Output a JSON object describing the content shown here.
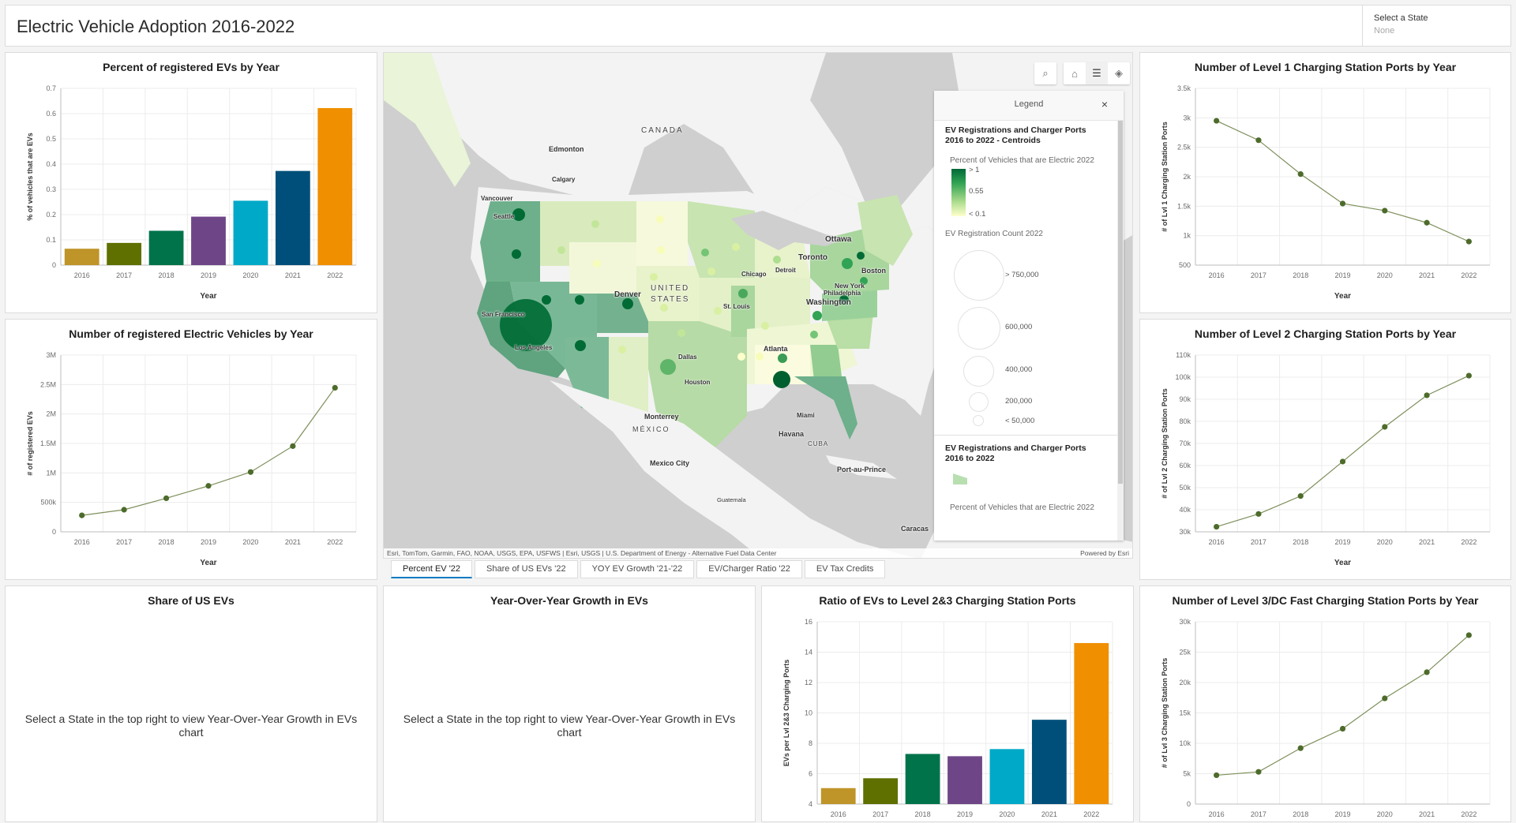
{
  "header": {
    "title": "Electric Vehicle Adoption 2016-2022",
    "state_select": {
      "label": "Select a State",
      "value": "None"
    }
  },
  "map": {
    "toolbar": [
      {
        "name": "search",
        "icon": "search-icon",
        "glyph": "⌕"
      },
      {
        "name": "home",
        "icon": "home-icon",
        "glyph": "⌂"
      },
      {
        "name": "legend",
        "icon": "legend-list-icon",
        "glyph": "☰",
        "active": true
      },
      {
        "name": "layers",
        "icon": "layers-icon",
        "glyph": "◈"
      }
    ],
    "labels": {
      "canada": "CANADA",
      "edmonton": "Edmonton",
      "calgary": "Calgary",
      "vancouver": "Vancouver",
      "seattle": "Seattle",
      "san_francisco": "San Francisco",
      "los_angeles": "Los Angeles",
      "denver": "Denver",
      "united": "UNITED",
      "states": "STATES",
      "chicago": "Chicago",
      "st_louis": "St. Louis",
      "detroit": "Detroit",
      "toronto": "Toronto",
      "ottawa": "Ottawa",
      "boston": "Boston",
      "new_york": "New York",
      "philadelphia": "Philadelphia",
      "washington": "Washington",
      "atlanta": "Atlanta",
      "dallas": "Dallas",
      "houston": "Houston",
      "miami": "Miami",
      "monterrey": "Monterrey",
      "mexico": "MÉXICO",
      "mexico_city": "Mexico City",
      "havana": "Havana",
      "cuba": "CUBA",
      "port_au_prince": "Port-au-Prince",
      "guatemala": "Guatemala",
      "caracas": "Caracas"
    },
    "attribution": "Esri, TomTom, Garmin, FAO, NOAA, USGS, EPA, USFWS | Esri, USGS | U.S. Department of Energy - Alternative Fuel Data Center",
    "powered_by": "Powered by Esri",
    "legend": {
      "title": "Legend",
      "close": "×",
      "layer1_title": "EV Registrations and Charger Ports 2016 to 2022 - Centroids",
      "color_title": "Percent of Vehicles that are Electric 2022",
      "color_ticks": [
        "> 1",
        "0.55",
        "< 0.1"
      ],
      "size_title": "EV Registration Count 2022",
      "size_ticks": [
        "> 750,000",
        "600,000",
        "400,000",
        "200,000",
        "< 50,000"
      ],
      "layer2_title": "EV Registrations and Charger Ports 2016 to 2022",
      "layer2_sub": "Percent of Vehicles that are Electric 2022"
    }
  },
  "tabs": [
    {
      "label": "Percent EV '22",
      "active": true
    },
    {
      "label": "Share of US EVs '22"
    },
    {
      "label": "YOY EV Growth '21-'22"
    },
    {
      "label": "EV/Charger Ratio '22"
    },
    {
      "label": "EV Tax Credits"
    }
  ],
  "empty_panels": {
    "share": {
      "title": "Share of US EVs",
      "message": "Select a State in the top right to view Year-Over-Year Growth in EVs chart"
    },
    "yoy": {
      "title": "Year-Over-Year Growth in EVs",
      "message": "Select a State in the top right to view Year-Over-Year Growth in EVs chart"
    }
  },
  "bar_colors": [
    "#bf9428",
    "#5f7000",
    "#00734a",
    "#6e4688",
    "#00a9c8",
    "#004f7a",
    "#f08f00"
  ],
  "line_color": "#4d6b2a",
  "chart_data": [
    {
      "id": "pct",
      "type": "bar",
      "title": "Percent of registered EVs by Year",
      "xlabel": "Year",
      "ylabel": "% of vehicles that are EVs",
      "categories": [
        "2016",
        "2017",
        "2018",
        "2019",
        "2020",
        "2021",
        "2022"
      ],
      "values": [
        0.065,
        0.088,
        0.136,
        0.192,
        0.255,
        0.373,
        0.622
      ],
      "ylim": [
        0,
        0.7
      ],
      "yticks": [
        0,
        0.1,
        0.2,
        0.3,
        0.4,
        0.5,
        0.6,
        0.7
      ],
      "yticklabels": [
        "0",
        "0.1",
        "0.2",
        "0.3",
        "0.4",
        "0.5",
        "0.6",
        "0.7"
      ],
      "grid": true
    },
    {
      "id": "count",
      "type": "line",
      "title": "Number of registered Electric Vehicles by Year",
      "xlabel": "Year",
      "ylabel": "# of registered EVs",
      "categories": [
        "2016",
        "2017",
        "2018",
        "2019",
        "2020",
        "2021",
        "2022"
      ],
      "values": [
        280000,
        375000,
        570000,
        780000,
        1015000,
        1455000,
        2445000
      ],
      "ylim": [
        0,
        3000000
      ],
      "yticks": [
        0,
        500000,
        1000000,
        1500000,
        2000000,
        2500000,
        3000000
      ],
      "yticklabels": [
        "0",
        "500k",
        "1M",
        "1.5M",
        "2M",
        "2.5M",
        "3M"
      ],
      "grid": true
    },
    {
      "id": "lvl1",
      "type": "line",
      "title": "Number of Level 1 Charging Station Ports by Year",
      "xlabel": "Year",
      "ylabel": "# of Lvl 1 Charging Station Ports",
      "categories": [
        "2016",
        "2017",
        "2018",
        "2019",
        "2020",
        "2021",
        "2022"
      ],
      "values": [
        2950,
        2620,
        2045,
        1545,
        1425,
        1220,
        900
      ],
      "ylim": [
        500,
        3500
      ],
      "yticks": [
        500,
        1000,
        1500,
        2000,
        2500,
        3000,
        3500
      ],
      "yticklabels": [
        "500",
        "1k",
        "1.5k",
        "2k",
        "2.5k",
        "3k",
        "3.5k"
      ],
      "grid": true
    },
    {
      "id": "lvl2",
      "type": "line",
      "title": "Number of Level 2 Charging Station Ports by Year",
      "xlabel": "Year",
      "ylabel": "# of Lvl 2 Charging Station Ports",
      "categories": [
        "2016",
        "2017",
        "2018",
        "2019",
        "2020",
        "2021",
        "2022"
      ],
      "values": [
        32300,
        38100,
        46200,
        61800,
        77500,
        91800,
        100700
      ],
      "ylim": [
        30000,
        110000
      ],
      "yticks": [
        30000,
        40000,
        50000,
        60000,
        70000,
        80000,
        90000,
        100000,
        110000
      ],
      "yticklabels": [
        "30k",
        "40k",
        "50k",
        "60k",
        "70k",
        "80k",
        "90k",
        "100k",
        "110k"
      ],
      "grid": true
    },
    {
      "id": "ratio",
      "type": "bar",
      "title": "Ratio of EVs to Level 2&3 Charging Station Ports",
      "xlabel": "",
      "ylabel": "EVs per Lvl 2&3 Charging Ports",
      "categories": [
        "2016",
        "2017",
        "2018",
        "2019",
        "2020",
        "2021",
        "2022"
      ],
      "values": [
        5.05,
        5.7,
        7.3,
        7.15,
        7.62,
        9.55,
        14.6
      ],
      "ylim": [
        4,
        16
      ],
      "yticks": [
        4,
        6,
        8,
        10,
        12,
        14,
        16
      ],
      "yticklabels": [
        "4",
        "6",
        "8",
        "10",
        "12",
        "14",
        "16"
      ],
      "grid": true
    },
    {
      "id": "lvl3",
      "type": "line",
      "title": "Number of Level 3/DC Fast Charging Station Ports by Year",
      "xlabel": "",
      "ylabel": "# of Lvl 3 Charging Station Ports",
      "categories": [
        "2016",
        "2017",
        "2018",
        "2019",
        "2020",
        "2021",
        "2022"
      ],
      "values": [
        4750,
        5300,
        9200,
        12400,
        17400,
        21700,
        27800
      ],
      "ylim": [
        0,
        30000
      ],
      "yticks": [
        0,
        5000,
        10000,
        15000,
        20000,
        25000,
        30000
      ],
      "yticklabels": [
        "0",
        "5k",
        "10k",
        "15k",
        "20k",
        "25k",
        "30k"
      ],
      "grid": true
    }
  ]
}
